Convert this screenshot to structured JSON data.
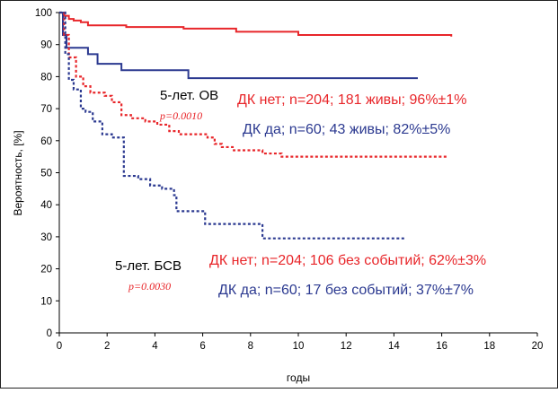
{
  "chart_data": {
    "type": "line",
    "xlabel": "годы",
    "ylabel": "Вероятность, [%]",
    "xlim": [
      0,
      20
    ],
    "ylim": [
      0,
      100
    ],
    "xticks": [
      "0",
      "2",
      "4",
      "6",
      "8",
      "10",
      "12",
      "14",
      "16",
      "18",
      "20"
    ],
    "yticks": [
      "0",
      "10",
      "20",
      "30",
      "40",
      "50",
      "60",
      "70",
      "80",
      "90",
      "100"
    ],
    "colors": {
      "red": "#e8262a",
      "blue": "#2b3990"
    },
    "series": [
      {
        "name": "ОВ ДК нет",
        "color": "#e8262a",
        "style": "solid",
        "points": [
          [
            0,
            100
          ],
          [
            0.2,
            99
          ],
          [
            0.4,
            98
          ],
          [
            0.6,
            97.5
          ],
          [
            0.9,
            97
          ],
          [
            1.2,
            96
          ],
          [
            2.8,
            95.5
          ],
          [
            5.2,
            95
          ],
          [
            7.4,
            94
          ],
          [
            10,
            93
          ],
          [
            16.4,
            92.5
          ]
        ]
      },
      {
        "name": "ОВ ДК да",
        "color": "#2b3990",
        "style": "solid",
        "points": [
          [
            0,
            100
          ],
          [
            0.15,
            93
          ],
          [
            0.3,
            89
          ],
          [
            1.2,
            87
          ],
          [
            1.6,
            84
          ],
          [
            2.6,
            82
          ],
          [
            5.4,
            79.5
          ],
          [
            15,
            79.5
          ]
        ]
      },
      {
        "name": "БСВ ДК нет",
        "color": "#e8262a",
        "style": "dashed",
        "points": [
          [
            0,
            100
          ],
          [
            0.2,
            93
          ],
          [
            0.4,
            86
          ],
          [
            0.7,
            80
          ],
          [
            1.0,
            77
          ],
          [
            1.3,
            75
          ],
          [
            1.9,
            74
          ],
          [
            2.2,
            72
          ],
          [
            2.6,
            68
          ],
          [
            3.0,
            67
          ],
          [
            3.6,
            66
          ],
          [
            4.1,
            65
          ],
          [
            4.6,
            63
          ],
          [
            5.0,
            62
          ],
          [
            6.2,
            61
          ],
          [
            6.5,
            59
          ],
          [
            6.8,
            58
          ],
          [
            7.3,
            57
          ],
          [
            7.8,
            57
          ],
          [
            8.5,
            56
          ],
          [
            9.3,
            55
          ],
          [
            16.2,
            55
          ]
        ]
      },
      {
        "name": "БСВ ДК да",
        "color": "#2b3990",
        "style": "dashed",
        "points": [
          [
            0,
            100
          ],
          [
            0.25,
            87
          ],
          [
            0.4,
            79
          ],
          [
            0.6,
            76
          ],
          [
            0.9,
            70
          ],
          [
            1.1,
            69
          ],
          [
            1.4,
            66
          ],
          [
            1.8,
            62
          ],
          [
            2.2,
            61
          ],
          [
            2.7,
            49
          ],
          [
            3.3,
            48
          ],
          [
            3.8,
            46
          ],
          [
            4.3,
            45
          ],
          [
            4.8,
            43
          ],
          [
            4.9,
            38
          ],
          [
            6.0,
            38
          ],
          [
            6.1,
            34
          ],
          [
            8.4,
            34
          ],
          [
            8.5,
            29.5
          ],
          [
            14.5,
            29.5
          ]
        ]
      }
    ],
    "annotations": {
      "os_title": "5-лет. ОВ",
      "os_p": "p=0.0010",
      "os_no": "ДК нет; n=204; 181 живы; 96%±1%",
      "os_yes": "ДК да; n=60; 43 живы; 82%±5%",
      "efs_title": "5-лет. БСВ",
      "efs_p": "p=0.0030",
      "efs_no": "ДК нет; n=204; 106 без событий; 62%±3%",
      "efs_yes": "ДК да; n=60; 17 без событий; 37%±7%"
    }
  }
}
